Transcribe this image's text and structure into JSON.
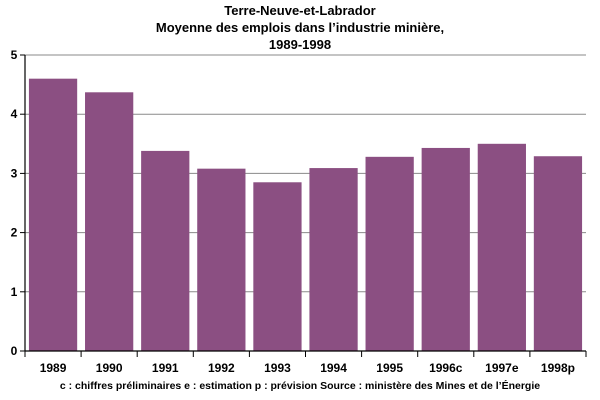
{
  "chart_data": {
    "type": "bar",
    "title_lines": [
      "Terre-Neuve-et-Labrador",
      "Moyenne des emplois dans l’industrie minière,",
      "1989-1998"
    ],
    "categories": [
      "1989",
      "1990",
      "1991",
      "1992",
      "1993",
      "1994",
      "1995",
      "1996c",
      "1997e",
      "1998p"
    ],
    "values": [
      4.6,
      4.37,
      3.38,
      3.08,
      2.85,
      3.09,
      3.28,
      3.43,
      3.5,
      3.29
    ],
    "ylim": [
      0,
      5
    ],
    "yticks": [
      0,
      1,
      2,
      3,
      4,
      5
    ],
    "grid": true,
    "bar_color": "#8b4f82",
    "note": "c : chiffres préliminaires    e : estimation    p : prévision    Source : ministère des Mines et de l’Énergie"
  }
}
